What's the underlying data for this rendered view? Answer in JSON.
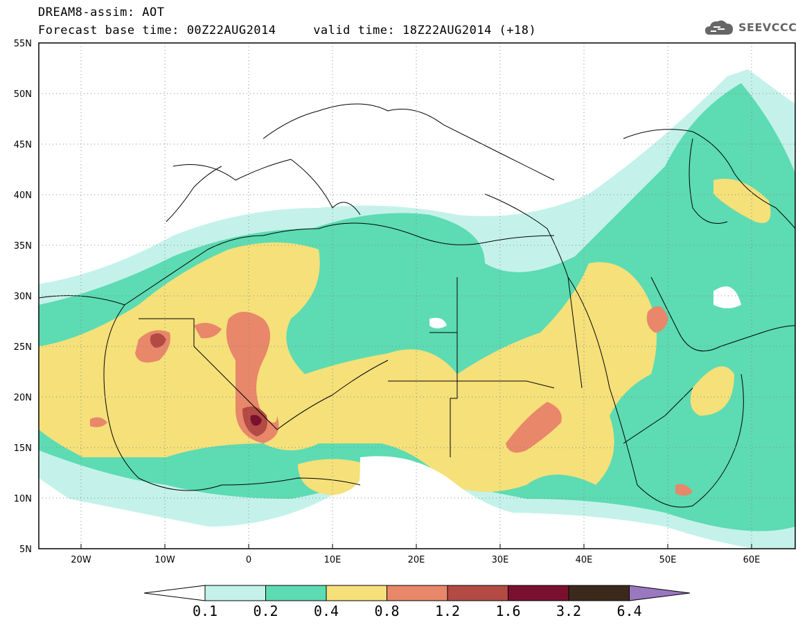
{
  "header": {
    "line1": "DREAM8-assim: AOT",
    "line2": "Forecast base time: 00Z22AUG2014     valid time: 18Z22AUG2014 (+18)",
    "logo_text": "SEEVCCC"
  },
  "map": {
    "variable": "AOT",
    "lon_range": [
      -25,
      65
    ],
    "lat_range": [
      5,
      55
    ],
    "y_tick_labels": [
      "55N",
      "50N",
      "45N",
      "40N",
      "35N",
      "30N",
      "25N",
      "20N",
      "15N",
      "10N",
      "5N"
    ],
    "x_tick_labels": [
      "20W",
      "10W",
      "0",
      "10E",
      "20E",
      "30E",
      "40E",
      "50E",
      "60E"
    ]
  },
  "colorbar": {
    "labels": [
      "0.1",
      "0.2",
      "0.4",
      "0.8",
      "1.2",
      "1.6",
      "3.2",
      "6.4"
    ],
    "colors": [
      "#c4f2ea",
      "#5ddbb2",
      "#f5e07a",
      "#e8876a",
      "#b34a44",
      "#7a1030",
      "#3b2a1c",
      "#9a78c0"
    ]
  }
}
